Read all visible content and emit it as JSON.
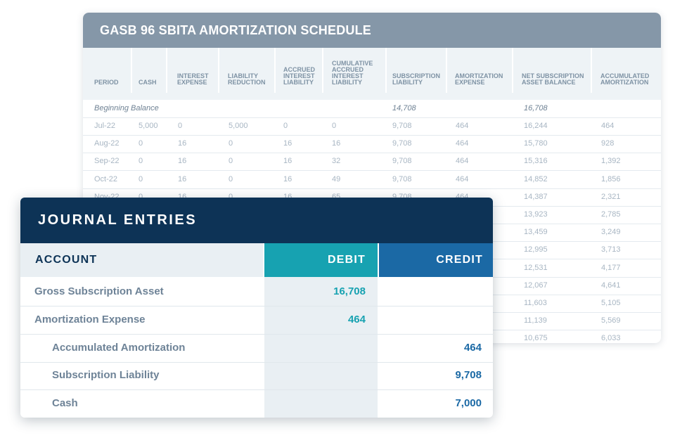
{
  "schedule": {
    "title": "GASB 96 SBITA AMORTIZATION SCHEDULE",
    "headers": [
      "PERIOD",
      "CASH",
      "INTEREST\nEXPENSE",
      "LIABILITY\nREDUCTION",
      "ACCRUED\nINTEREST\nLIABILITY",
      "CUMULATIVE\nACCRUED\nINTEREST\nLIABILITY",
      "SUBSCRIPTION\nLIABILITY",
      "AMORTIZATION\nEXPENSE",
      "NET SUBSCRIPTION\nASSET BALANCE",
      "ACCUMULATED\nAMORTIZATION"
    ],
    "beginning_balance": {
      "label": "Beginning Balance",
      "subscription_liability": "14,708",
      "net_subscription_asset_balance": "16,708"
    },
    "rows": [
      [
        "Jul-22",
        "5,000",
        "0",
        "5,000",
        "0",
        "0",
        "9,708",
        "464",
        "16,244",
        "464"
      ],
      [
        "Aug-22",
        "0",
        "16",
        "0",
        "16",
        "16",
        "9,708",
        "464",
        "15,780",
        "928"
      ],
      [
        "Sep-22",
        "0",
        "16",
        "0",
        "16",
        "32",
        "9,708",
        "464",
        "15,316",
        "1,392"
      ],
      [
        "Oct-22",
        "0",
        "16",
        "0",
        "16",
        "49",
        "9,708",
        "464",
        "14,852",
        "1,856"
      ],
      [
        "Nov-22",
        "0",
        "16",
        "0",
        "16",
        "65",
        "9,708",
        "464",
        "14,387",
        "2,321"
      ],
      [
        "",
        "",
        "",
        "",
        "",
        "",
        "",
        "",
        "13,923",
        "2,785"
      ],
      [
        "",
        "",
        "",
        "",
        "",
        "",
        "",
        "",
        "13,459",
        "3,249"
      ],
      [
        "",
        "",
        "",
        "",
        "",
        "",
        "",
        "",
        "12,995",
        "3,713"
      ],
      [
        "",
        "",
        "",
        "",
        "",
        "",
        "",
        "",
        "12,531",
        "4,177"
      ],
      [
        "",
        "",
        "",
        "",
        "",
        "",
        "",
        "",
        "12,067",
        "4,641"
      ],
      [
        "",
        "",
        "",
        "",
        "",
        "",
        "",
        "",
        "11,603",
        "5,105"
      ],
      [
        "",
        "",
        "",
        "",
        "",
        "",
        "",
        "",
        "11,139",
        "5,569"
      ],
      [
        "",
        "",
        "",
        "",
        "",
        "",
        "",
        "",
        "10,675",
        "6,033"
      ]
    ]
  },
  "journal": {
    "title": "JOURNAL ENTRIES",
    "headers": {
      "account": "ACCOUNT",
      "debit": "DEBIT",
      "credit": "CREDIT"
    },
    "entries": [
      {
        "account": "Gross Subscription Asset",
        "indent": false,
        "debit": "16,708",
        "credit": ""
      },
      {
        "account": "Amortization Expense",
        "indent": false,
        "debit": "464",
        "credit": ""
      },
      {
        "account": "Accumulated Amortization",
        "indent": true,
        "debit": "",
        "credit": "464"
      },
      {
        "account": "Subscription Liability",
        "indent": true,
        "debit": "",
        "credit": "9,708"
      },
      {
        "account": "Cash",
        "indent": true,
        "debit": "",
        "credit": "7,000"
      }
    ]
  },
  "colors": {
    "schedule_header": "#8597a8",
    "journal_header": "#0d3356",
    "debit_accent": "#17a2b1",
    "credit_accent": "#1b69a5"
  }
}
